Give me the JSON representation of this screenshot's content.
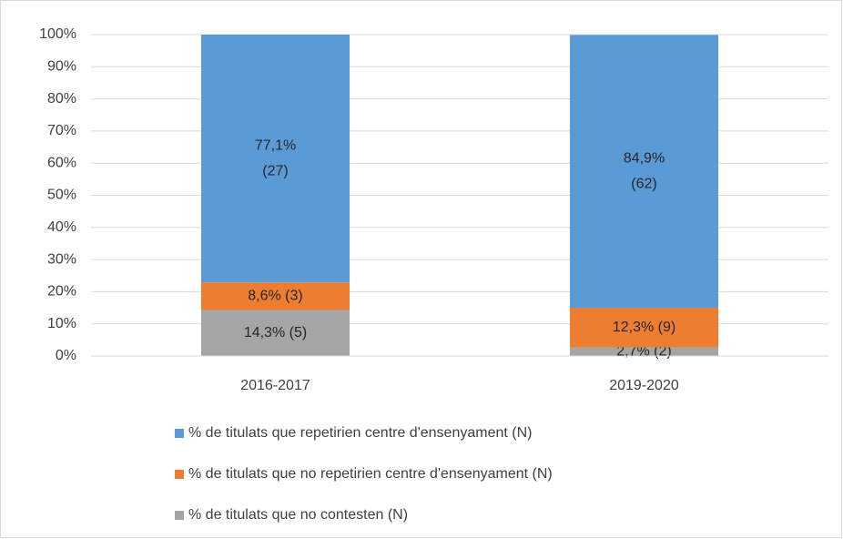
{
  "chart_data": {
    "type": "stacked_bar",
    "categories": [
      "2016-2017",
      "2019-2020"
    ],
    "series": [
      {
        "name": "% de titulats que no contesten (N)",
        "color": "#a5a5a5",
        "values": [
          14.3,
          2.7
        ],
        "value_labels": [
          "14,3% (5)",
          "2,7% (2)"
        ]
      },
      {
        "name": "% de titulats que no repetirien centre d'ensenyament (N)",
        "color": "#ed7d31",
        "values": [
          8.6,
          12.3
        ],
        "value_labels": [
          "8,6% (3)",
          "12,3% (9)"
        ]
      },
      {
        "name": "% de titulats que repetirien centre d'ensenyament (N)",
        "color": "#5b9bd5",
        "values": [
          77.1,
          84.9
        ],
        "value_labels": [
          [
            "77,1%",
            "(27)"
          ],
          [
            "84,9%",
            "(62)"
          ]
        ]
      }
    ],
    "ylim": [
      0,
      100
    ],
    "yticks": [
      {
        "value": 0,
        "label": "0%"
      },
      {
        "value": 10,
        "label": "10%"
      },
      {
        "value": 20,
        "label": "20%"
      },
      {
        "value": 30,
        "label": "30%"
      },
      {
        "value": 40,
        "label": "40%"
      },
      {
        "value": 50,
        "label": "50%"
      },
      {
        "value": 60,
        "label": "60%"
      },
      {
        "value": 70,
        "label": "70%"
      },
      {
        "value": 80,
        "label": "80%"
      },
      {
        "value": 90,
        "label": "90%"
      },
      {
        "value": 100,
        "label": "100%"
      }
    ],
    "grid": true,
    "legend": "bottom"
  }
}
